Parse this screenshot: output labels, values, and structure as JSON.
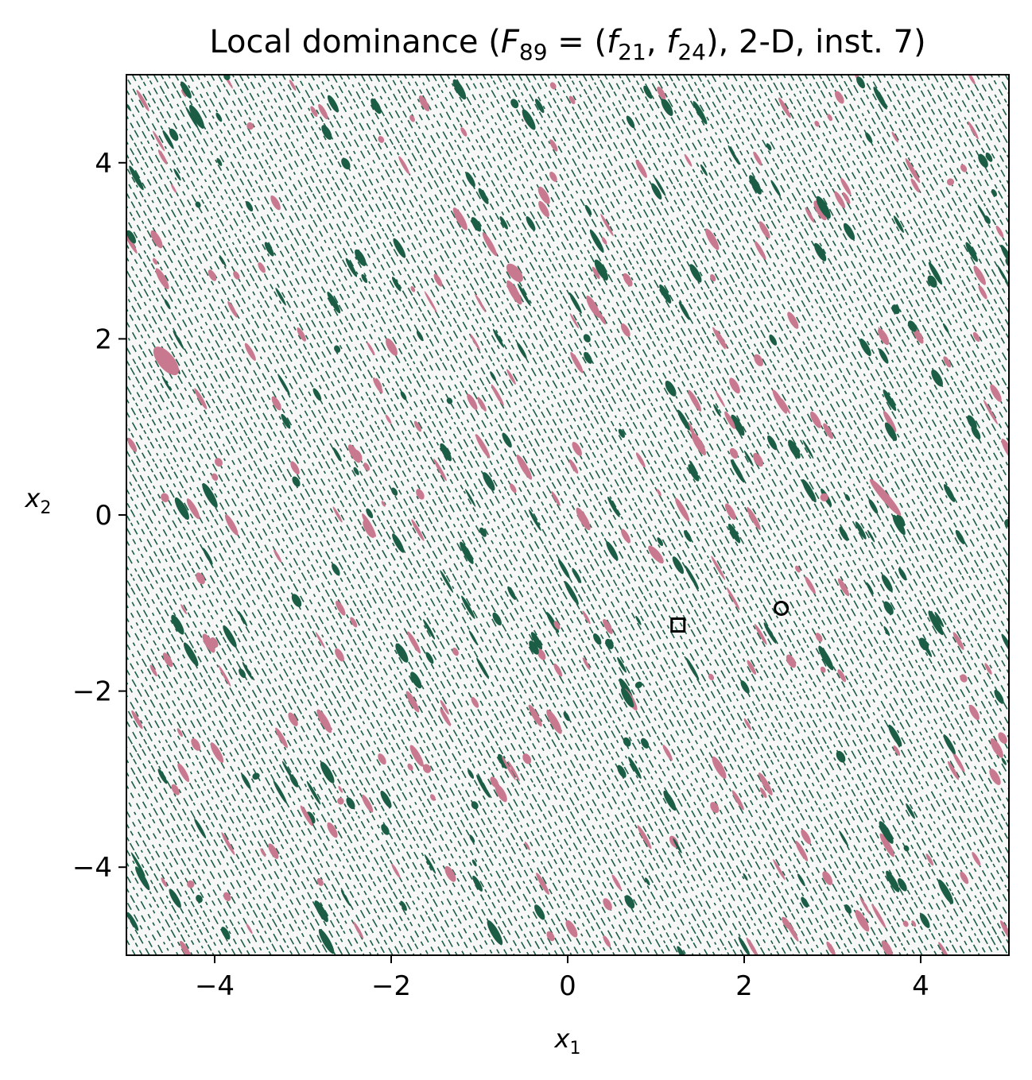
{
  "chart_data": {
    "type": "heatmap",
    "title": {
      "prefix": "Local dominance (",
      "F": "F",
      "F_sub": "89",
      "eq": " = (",
      "f1": "f",
      "f1_sub": "21",
      "comma": ", ",
      "f2": "f",
      "f2_sub": "24",
      "suffix": "), 2-D, inst. 7)"
    },
    "xlabel": {
      "base": "x",
      "sub": "1"
    },
    "ylabel": {
      "base": "x",
      "sub": "2"
    },
    "xlim": [
      -5,
      5
    ],
    "ylim": [
      -5,
      5
    ],
    "xticks": [
      -4,
      -2,
      0,
      2,
      4
    ],
    "yticks": [
      -4,
      -2,
      0,
      2,
      4
    ],
    "xtick_labels": [
      "−4",
      "−2",
      "0",
      "2",
      "4"
    ],
    "ytick_labels": [
      "−4",
      "−2",
      "0",
      "2",
      "4"
    ],
    "grid": false,
    "colors": {
      "background": "#f7f7f7",
      "dominated": "#1b5e45",
      "locally_efficient": "#c9798f",
      "frame": "#000000"
    },
    "pattern": {
      "stripe_slope": -1.8,
      "stripe_spacing": 0.09,
      "band_directions": [
        0.85,
        -0.85
      ]
    },
    "markers": [
      {
        "name": "square-marker",
        "shape": "square",
        "x": 1.25,
        "y": -1.25
      },
      {
        "name": "circle-marker",
        "shape": "circle",
        "x": 2.42,
        "y": -1.06
      }
    ]
  }
}
